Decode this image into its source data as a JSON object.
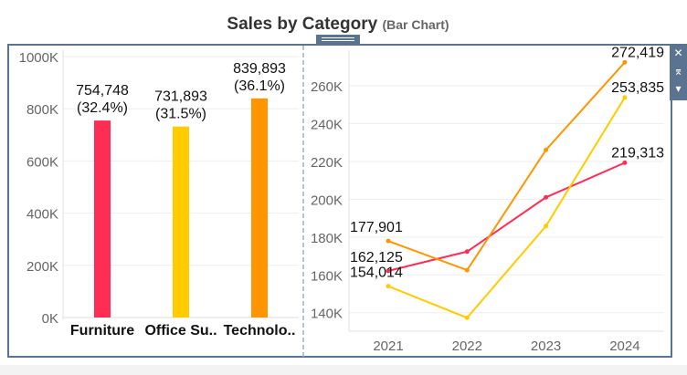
{
  "title": "Sales by Category",
  "subtitle": "(Bar Chart)",
  "toolbar": {
    "close": "✕",
    "pin": "⌆",
    "menu": "▾"
  },
  "colors": {
    "Furniture": "#ff2d55",
    "Office Supplies": "#ffcc00",
    "Technology": "#ff9500"
  },
  "chart_data": [
    {
      "type": "bar",
      "categories": [
        "Furniture",
        "Office Su..",
        "Technolo.."
      ],
      "values": [
        754748,
        731893,
        839893
      ],
      "data_labels": [
        "754,748",
        "731,893",
        "839,893"
      ],
      "percent_labels": [
        "(32.4%)",
        "(31.5%)",
        "(36.1%)"
      ],
      "ylim": [
        0,
        1000000
      ],
      "yticks": [
        "0K",
        "200K",
        "400K",
        "600K",
        "800K",
        "1000K"
      ],
      "grid": true
    },
    {
      "type": "line",
      "x": [
        "2021",
        "2022",
        "2023",
        "2024"
      ],
      "ylim": [
        130000,
        280000
      ],
      "yticks": [
        "140K",
        "160K",
        "180K",
        "200K",
        "220K",
        "240K",
        "260K"
      ],
      "grid": true,
      "series": [
        {
          "category": "Furniture",
          "values": [
            162125,
            172300,
            201010,
            219313
          ],
          "labels": [
            "162,125",
            "",
            "",
            "219,313"
          ]
        },
        {
          "category": "Office Supplies",
          "values": [
            154014,
            137300,
            185800,
            253835
          ],
          "labels": [
            "154,014",
            "",
            "",
            "253,835"
          ]
        },
        {
          "category": "Technology",
          "values": [
            177901,
            162500,
            226100,
            272419
          ],
          "labels": [
            "177,901",
            "",
            "",
            "272,419"
          ]
        }
      ]
    }
  ]
}
